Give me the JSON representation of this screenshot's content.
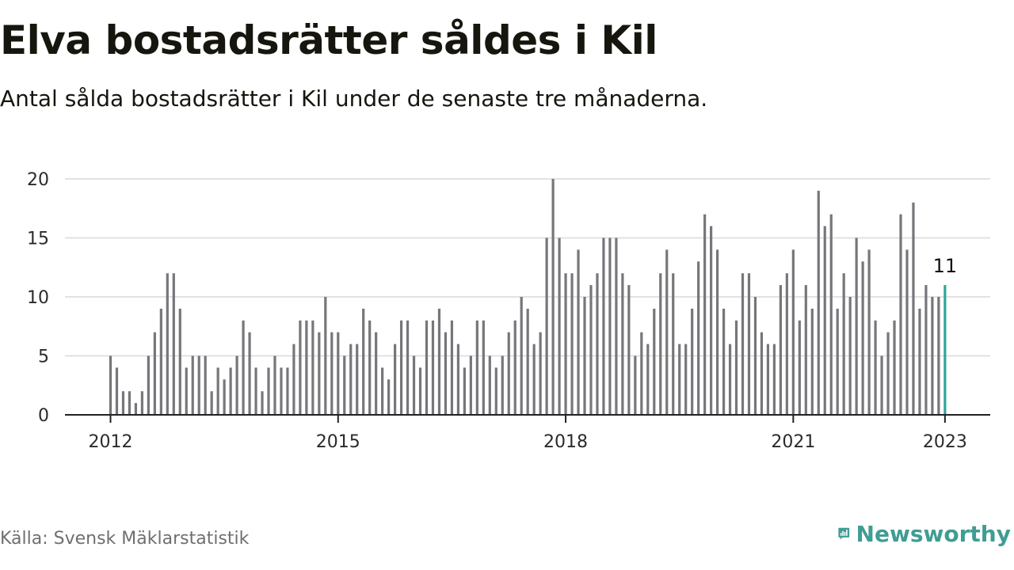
{
  "header": {
    "title": "Elva bostadsrätter såldes i Kil",
    "subtitle": "Antal sålda bostadsrätter i Kil under de senaste tre månaderna."
  },
  "footer": {
    "source": "Källa: Svensk Mäklarstatistik",
    "brand": "Newsworthy"
  },
  "colors": {
    "bar": "#76767b",
    "highlight": "#2fa59a",
    "grid": "#d9d9d9",
    "axis": "#222222",
    "brand": "#3f9d93"
  },
  "chart_data": {
    "type": "bar",
    "title": "Elva bostadsrätter såldes i Kil",
    "subtitle": "Antal sålda bostadsrätter i Kil under de senaste tre månaderna.",
    "xlabel": "",
    "ylabel": "",
    "x_start": "2012-01",
    "x_end": "2023-01",
    "frequency": "monthly",
    "x_ticks": [
      "2012",
      "2015",
      "2018",
      "2021",
      "2023"
    ],
    "ylim": [
      0,
      20
    ],
    "y_ticks": [
      0,
      5,
      10,
      15,
      20
    ],
    "grid": true,
    "legend": "none",
    "values": [
      5,
      4,
      2,
      2,
      1,
      2,
      5,
      7,
      9,
      12,
      12,
      9,
      4,
      5,
      5,
      5,
      2,
      4,
      3,
      4,
      5,
      8,
      7,
      4,
      2,
      4,
      5,
      4,
      4,
      6,
      8,
      8,
      8,
      7,
      10,
      7,
      7,
      5,
      6,
      6,
      9,
      8,
      7,
      4,
      3,
      6,
      8,
      8,
      5,
      4,
      8,
      8,
      9,
      7,
      8,
      6,
      4,
      5,
      8,
      8,
      5,
      4,
      5,
      7,
      8,
      10,
      9,
      6,
      7,
      15,
      20,
      15,
      12,
      12,
      14,
      10,
      11,
      12,
      15,
      15,
      15,
      12,
      11,
      5,
      7,
      6,
      9,
      12,
      14,
      12,
      6,
      6,
      9,
      13,
      17,
      16,
      14,
      9,
      6,
      8,
      12,
      12,
      10,
      7,
      6,
      6,
      11,
      12,
      14,
      8,
      11,
      9,
      19,
      16,
      17,
      9,
      12,
      10,
      15,
      13,
      14,
      8,
      5,
      7,
      8,
      17,
      14,
      18,
      9,
      11,
      10,
      10,
      11
    ],
    "highlight_last": true,
    "annotation": {
      "text": "11",
      "target": "last"
    }
  }
}
